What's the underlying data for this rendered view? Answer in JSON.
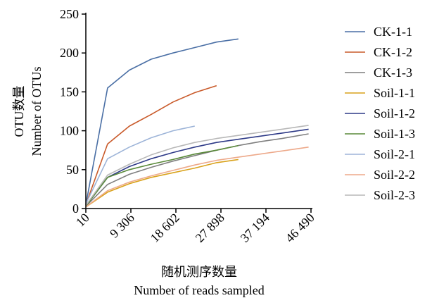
{
  "chart_data": {
    "type": "line",
    "xlabel": "随机测序数量",
    "xlabel_en": "Number of reads sampled",
    "ylabel": "OTU数量",
    "ylabel_en": "Number of OTUs",
    "xlim": [
      10,
      46490
    ],
    "ylim": [
      0,
      250
    ],
    "x_ticks": [
      10,
      9306,
      18602,
      27898,
      37194,
      46490
    ],
    "x_tick_labels": [
      "10",
      "9 306",
      "18 602",
      "27 898",
      "37 194",
      "46 490"
    ],
    "y_ticks": [
      0,
      50,
      100,
      150,
      200,
      250
    ],
    "y_tick_labels": [
      "0",
      "50",
      "100",
      "150",
      "200",
      "250"
    ],
    "grid": false,
    "legend_position": "right",
    "series": [
      {
        "name": "CK-1-1",
        "color": "#4a6fa5",
        "x": [
          10,
          4500,
          9000,
          13500,
          18000,
          22500,
          27000,
          31500
        ],
        "y": [
          5,
          155,
          178,
          192,
          200,
          207,
          214,
          218
        ]
      },
      {
        "name": "CK-1-2",
        "color": "#c95a2a",
        "x": [
          10,
          4500,
          9000,
          13500,
          18000,
          22500,
          27000
        ],
        "y": [
          5,
          83,
          106,
          121,
          137,
          149,
          158
        ]
      },
      {
        "name": "CK-1-3",
        "color": "#7f7f7f",
        "x": [
          10,
          4500,
          9000,
          13500,
          18000,
          22500,
          27000,
          31500,
          36000,
          40500,
          46000
        ],
        "y": [
          3,
          31,
          44,
          53,
          61,
          68,
          75,
          81,
          86,
          90,
          96
        ]
      },
      {
        "name": "Soil-1-1",
        "color": "#d9a21b",
        "x": [
          10,
          4500,
          9000,
          13500,
          18000,
          22500,
          27000,
          31500
        ],
        "y": [
          2,
          21,
          32,
          40,
          46,
          52,
          59,
          63
        ]
      },
      {
        "name": "Soil-1-2",
        "color": "#2e3a87",
        "x": [
          10,
          4500,
          9000,
          13500,
          18000,
          22500,
          27000,
          31500,
          36000,
          40500,
          46000
        ],
        "y": [
          3,
          40,
          54,
          64,
          72,
          79,
          85,
          89,
          93,
          97,
          102
        ]
      },
      {
        "name": "Soil-1-3",
        "color": "#5a8a3a",
        "x": [
          10,
          4500,
          9000,
          13500,
          18000,
          22500,
          27000,
          31500
        ],
        "y": [
          3,
          40,
          50,
          57,
          63,
          70,
          75,
          81
        ]
      },
      {
        "name": "Soil-2-1",
        "color": "#9db4d8",
        "x": [
          10,
          4500,
          9000,
          13500,
          18000,
          22500
        ],
        "y": [
          6,
          64,
          79,
          91,
          100,
          106
        ]
      },
      {
        "name": "Soil-2-2",
        "color": "#eda98a",
        "x": [
          10,
          4500,
          9000,
          13500,
          18000,
          22500,
          27000,
          31500,
          36000,
          40500,
          46000
        ],
        "y": [
          2,
          23,
          34,
          42,
          49,
          56,
          62,
          66,
          70,
          74,
          79
        ]
      },
      {
        "name": "Soil-2-3",
        "color": "#b8b8b8",
        "x": [
          10,
          4500,
          9000,
          13500,
          18000,
          22500,
          27000,
          31500,
          36000,
          40500,
          46000
        ],
        "y": [
          4,
          43,
          57,
          69,
          78,
          85,
          90,
          94,
          98,
          102,
          107
        ]
      }
    ]
  }
}
